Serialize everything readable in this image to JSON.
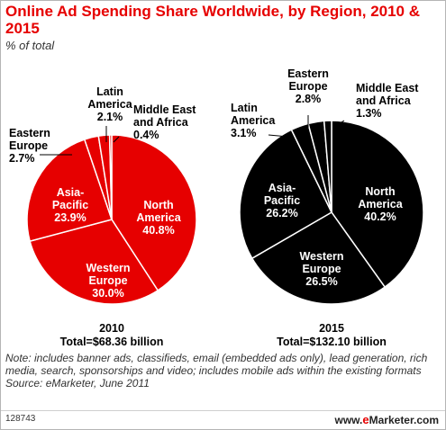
{
  "header": {
    "title": "Online Ad Spending Share Worldwide, by Region, 2010 & 2015",
    "subtitle": "% of total"
  },
  "chart_data": [
    {
      "type": "pie",
      "year": "2010",
      "total": "Total=$68.36 billion",
      "color": "#e60000",
      "slices": [
        {
          "label": "North America",
          "value": 40.8,
          "display": "40.8%"
        },
        {
          "label": "Western Europe",
          "value": 30.0,
          "display": "30.0%"
        },
        {
          "label": "Asia-Pacific",
          "value": 23.9,
          "display": "23.9%"
        },
        {
          "label": "Eastern Europe",
          "value": 2.7,
          "display": "2.7%"
        },
        {
          "label": "Latin America",
          "value": 2.1,
          "display": "2.1%"
        },
        {
          "label": "Middle East and Africa",
          "value": 0.4,
          "display": "0.4%"
        }
      ]
    },
    {
      "type": "pie",
      "year": "2015",
      "total": "Total=$132.10 billion",
      "color": "#000000",
      "slices": [
        {
          "label": "North America",
          "value": 40.2,
          "display": "40.2%"
        },
        {
          "label": "Western Europe",
          "value": 26.5,
          "display": "26.5%"
        },
        {
          "label": "Asia-Pacific",
          "value": 26.2,
          "display": "26.2%"
        },
        {
          "label": "Latin America",
          "value": 3.1,
          "display": "3.1%"
        },
        {
          "label": "Eastern Europe",
          "value": 2.8,
          "display": "2.8%"
        },
        {
          "label": "Middle East and Africa",
          "value": 1.3,
          "display": "1.3%"
        }
      ]
    }
  ],
  "note": "Note: includes banner ads, classifieds, email (embedded ads only), lead generation, rich media, search, sponsorships and video; includes mobile ads within the existing formats",
  "source": "Source: eMarketer, June 2011",
  "footer": {
    "chart_id": "128743",
    "brand_prefix": "www.",
    "brand_e": "e",
    "brand_rest": "Marketer.com"
  }
}
